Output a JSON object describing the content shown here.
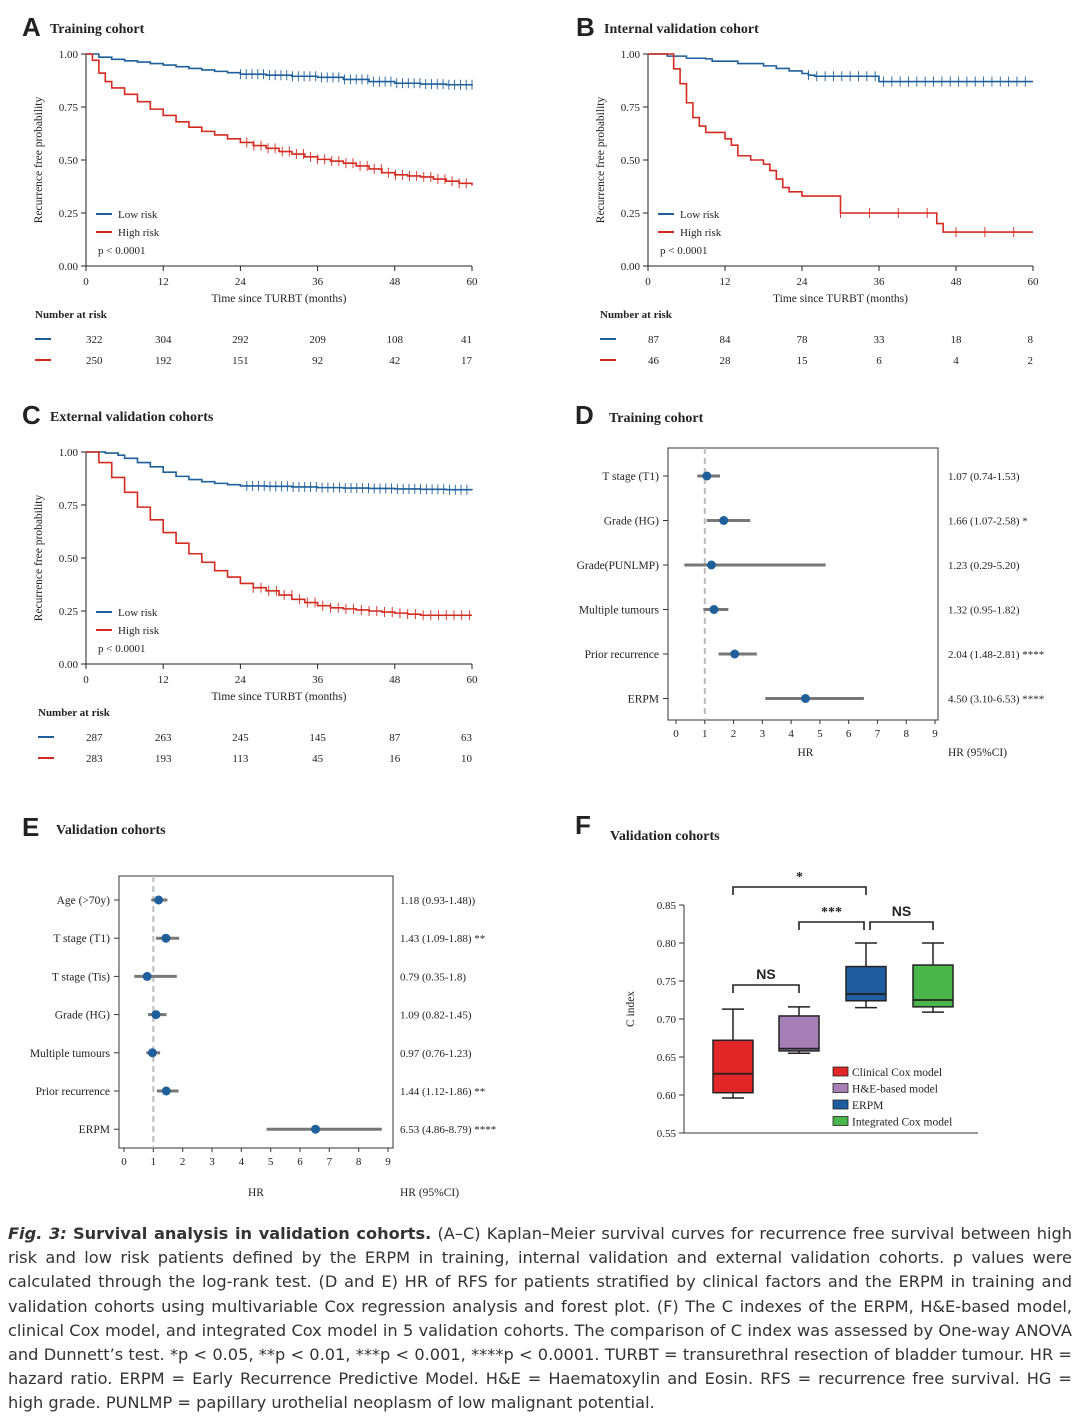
{
  "colors": {
    "low": "#1f5f9a",
    "high": "#d42a20",
    "forest_line": "#777777",
    "forest_dot": "#1f5f9a",
    "box": [
      "#e02626",
      "#a57fb5",
      "#1f5da0",
      "#4ab54a"
    ]
  },
  "panels": {
    "A": {
      "letter": "A",
      "title": "Training cohort",
      "ylabel": "Recurrence free probability",
      "xlabel": "Time since TURBT (months)",
      "legend": [
        "Low risk",
        "High risk"
      ],
      "pval": "p < 0.0001"
    },
    "B": {
      "letter": "B",
      "title": "Internal validation cohort",
      "ylabel": "Recurrence free probability",
      "xlabel": "Time since TURBT (months)",
      "legend": [
        "Low risk",
        "High risk"
      ],
      "pval": "p < 0.0001"
    },
    "C": {
      "letter": "C",
      "title": "External validation cohorts",
      "ylabel": "Recurrence free probability",
      "xlabel": "Time since TURBT (months)",
      "legend": [
        "Low risk",
        "High risk"
      ],
      "pval": "p < 0.0001"
    },
    "D": {
      "letter": "D",
      "title": "Training cohort",
      "xlabel": "HR",
      "hrlabel": "HR (95%CI)"
    },
    "E": {
      "letter": "E",
      "title": "Validation cohorts",
      "xlabel": "HR",
      "hrlabel": "HR (95%CI)"
    },
    "F": {
      "letter": "F",
      "title": "Validation cohorts",
      "ylabel": "C index"
    }
  },
  "risk_table_label": "Number at risk",
  "chart_data": [
    {
      "panel": "A",
      "type": "line",
      "title": "Training cohort",
      "xlabel": "Time since TURBT (months)",
      "ylabel": "Recurrence free probability",
      "xlim": [
        0,
        60
      ],
      "ylim": [
        0,
        1
      ],
      "xticks": [
        "0",
        "12",
        "24",
        "36",
        "48",
        "60"
      ],
      "yticks": [
        "0.00",
        "0.25",
        "0.50",
        "0.75",
        "1.00"
      ],
      "legend_position": "bottom-left",
      "series": [
        {
          "name": "Low risk",
          "x": [
            0,
            2,
            4,
            6,
            8,
            10,
            12,
            14,
            16,
            18,
            20,
            22,
            24,
            28,
            32,
            36,
            40,
            44,
            48,
            52,
            56,
            60
          ],
          "y": [
            1,
            0.985,
            0.975,
            0.968,
            0.962,
            0.955,
            0.948,
            0.94,
            0.932,
            0.925,
            0.918,
            0.912,
            0.905,
            0.9,
            0.895,
            0.89,
            0.88,
            0.87,
            0.862,
            0.858,
            0.855,
            0.85
          ]
        },
        {
          "name": "High risk",
          "x": [
            0,
            1,
            2,
            3,
            4,
            6,
            8,
            10,
            12,
            14,
            16,
            18,
            20,
            22,
            24,
            26,
            28,
            30,
            32,
            34,
            36,
            38,
            40,
            42,
            44,
            46,
            48,
            50,
            52,
            54,
            56,
            58,
            60
          ],
          "y": [
            1,
            0.97,
            0.91,
            0.87,
            0.84,
            0.81,
            0.775,
            0.74,
            0.71,
            0.68,
            0.655,
            0.635,
            0.618,
            0.6,
            0.583,
            0.568,
            0.555,
            0.54,
            0.528,
            0.515,
            0.503,
            0.495,
            0.485,
            0.472,
            0.458,
            0.44,
            0.43,
            0.425,
            0.42,
            0.41,
            0.4,
            0.39,
            0.38
          ]
        }
      ],
      "number_at_risk": {
        "times": [
          0,
          12,
          24,
          36,
          48,
          60
        ],
        "Low risk": [
          322,
          304,
          292,
          209,
          108,
          41
        ],
        "High risk": [
          250,
          192,
          151,
          92,
          42,
          17
        ]
      }
    },
    {
      "panel": "B",
      "type": "line",
      "title": "Internal validation cohort",
      "xlabel": "Time since TURBT (months)",
      "ylabel": "Recurrence free probability",
      "xlim": [
        0,
        60
      ],
      "ylim": [
        0,
        1
      ],
      "xticks": [
        "0",
        "12",
        "24",
        "36",
        "48",
        "60"
      ],
      "yticks": [
        "0.00",
        "0.25",
        "0.50",
        "0.75",
        "1.00"
      ],
      "legend_position": "bottom-left",
      "series": [
        {
          "name": "Low risk",
          "x": [
            0,
            3,
            6,
            9,
            10,
            14,
            18,
            20,
            22,
            24,
            25,
            26,
            28,
            30,
            34,
            36,
            40,
            44,
            48,
            52,
            56,
            60
          ],
          "y": [
            1,
            0.99,
            0.98,
            0.977,
            0.966,
            0.955,
            0.944,
            0.932,
            0.92,
            0.908,
            0.9,
            0.895,
            0.895,
            0.895,
            0.895,
            0.87,
            0.87,
            0.87,
            0.87,
            0.87,
            0.87,
            0.87
          ]
        },
        {
          "name": "High risk",
          "x": [
            0,
            4,
            5,
            6,
            7,
            8,
            9,
            12,
            13,
            14,
            16,
            18,
            19,
            20,
            21,
            22,
            24,
            26,
            30,
            36,
            40,
            44,
            45,
            46,
            48,
            52,
            56,
            60
          ],
          "y": [
            1,
            0.93,
            0.86,
            0.77,
            0.7,
            0.66,
            0.63,
            0.6,
            0.57,
            0.52,
            0.5,
            0.48,
            0.45,
            0.41,
            0.37,
            0.35,
            0.33,
            0.33,
            0.25,
            0.25,
            0.25,
            0.25,
            0.2,
            0.16,
            0.16,
            0.16,
            0.16,
            0.16
          ]
        }
      ],
      "number_at_risk": {
        "times": [
          0,
          12,
          24,
          36,
          48,
          60
        ],
        "Low risk": [
          87,
          84,
          78,
          33,
          18,
          8
        ],
        "High risk": [
          46,
          28,
          15,
          6,
          4,
          2
        ]
      }
    },
    {
      "panel": "C",
      "type": "line",
      "title": "External validation cohorts",
      "xlabel": "Time since TURBT (months)",
      "ylabel": "Recurrence free probability",
      "xlim": [
        0,
        60
      ],
      "ylim": [
        0,
        1
      ],
      "xticks": [
        "0",
        "12",
        "24",
        "36",
        "48",
        "60"
      ],
      "yticks": [
        "0.00",
        "0.25",
        "0.50",
        "0.75",
        "1.00"
      ],
      "legend_position": "bottom-left",
      "series": [
        {
          "name": "Low risk",
          "x": [
            0,
            3,
            5,
            6,
            8,
            10,
            12,
            14,
            16,
            18,
            20,
            22,
            24,
            28,
            32,
            36,
            40,
            44,
            48,
            52,
            56,
            60
          ],
          "y": [
            1,
            0.995,
            0.985,
            0.97,
            0.95,
            0.93,
            0.905,
            0.885,
            0.87,
            0.86,
            0.852,
            0.846,
            0.84,
            0.838,
            0.835,
            0.832,
            0.83,
            0.828,
            0.826,
            0.824,
            0.822,
            0.82
          ]
        },
        {
          "name": "High risk",
          "x": [
            0,
            2,
            4,
            6,
            8,
            10,
            12,
            14,
            16,
            18,
            20,
            22,
            24,
            26,
            28,
            30,
            32,
            34,
            36,
            38,
            40,
            42,
            44,
            46,
            48,
            50,
            52,
            56,
            60
          ],
          "y": [
            1,
            0.95,
            0.88,
            0.81,
            0.74,
            0.68,
            0.62,
            0.57,
            0.52,
            0.48,
            0.44,
            0.41,
            0.38,
            0.36,
            0.345,
            0.325,
            0.305,
            0.29,
            0.275,
            0.265,
            0.26,
            0.255,
            0.25,
            0.245,
            0.24,
            0.235,
            0.23,
            0.23,
            0.23
          ]
        }
      ],
      "number_at_risk": {
        "times": [
          0,
          12,
          24,
          36,
          48,
          60
        ],
        "Low risk": [
          287,
          263,
          245,
          145,
          87,
          63
        ],
        "High risk": [
          283,
          193,
          113,
          45,
          16,
          10
        ]
      }
    },
    {
      "panel": "D",
      "type": "scatter",
      "title": "Training cohort",
      "xlabel": "HR",
      "xlim": [
        0,
        9
      ],
      "xticks": [
        "0",
        "1",
        "2",
        "3",
        "4",
        "5",
        "6",
        "7",
        "8",
        "9"
      ],
      "reference_line": 1,
      "rows": [
        {
          "label": "T stage (T1)",
          "hr": 1.07,
          "lo": 0.74,
          "hi": 1.53,
          "text": "1.07 (0.74-1.53)"
        },
        {
          "label": "Grade (HG)",
          "hr": 1.66,
          "lo": 1.07,
          "hi": 2.58,
          "text": "1.66 (1.07-2.58) *"
        },
        {
          "label": "Grade(PUNLMP)",
          "hr": 1.23,
          "lo": 0.29,
          "hi": 5.2,
          "text": "1.23 (0.29-5.20)"
        },
        {
          "label": "Multiple tumours",
          "hr": 1.32,
          "lo": 0.95,
          "hi": 1.82,
          "text": "1.32 (0.95-1.82)"
        },
        {
          "label": "Prior recurrence",
          "hr": 2.04,
          "lo": 1.48,
          "hi": 2.81,
          "text": "2.04 (1.48-2.81) ****"
        },
        {
          "label": "ERPM",
          "hr": 4.5,
          "lo": 3.1,
          "hi": 6.53,
          "text": "4.50 (3.10-6.53) ****"
        }
      ]
    },
    {
      "panel": "E",
      "type": "scatter",
      "title": "Validation cohorts",
      "xlabel": "HR",
      "xlim": [
        0,
        9
      ],
      "xticks": [
        "0",
        "1",
        "2",
        "3",
        "4",
        "5",
        "6",
        "7",
        "8",
        "9"
      ],
      "reference_line": 1,
      "rows": [
        {
          "label": "Age (>70y)",
          "hr": 1.18,
          "lo": 0.93,
          "hi": 1.48,
          "text": "1.18 (0.93-1.48))"
        },
        {
          "label": "T stage (T1)",
          "hr": 1.43,
          "lo": 1.09,
          "hi": 1.88,
          "text": "1.43 (1.09-1.88) **"
        },
        {
          "label": "T stage (Tis)",
          "hr": 0.79,
          "lo": 0.35,
          "hi": 1.8,
          "text": "0.79 (0.35-1.8)"
        },
        {
          "label": "Grade (HG)",
          "hr": 1.09,
          "lo": 0.82,
          "hi": 1.45,
          "text": "1.09 (0.82-1.45)"
        },
        {
          "label": "Multiple tumours",
          "hr": 0.97,
          "lo": 0.76,
          "hi": 1.23,
          "text": "0.97 (0.76-1.23)"
        },
        {
          "label": "Prior recurrence",
          "hr": 1.44,
          "lo": 1.12,
          "hi": 1.86,
          "text": "1.44 (1.12-1.86) **"
        },
        {
          "label": "ERPM",
          "hr": 6.53,
          "lo": 4.86,
          "hi": 8.79,
          "text": "6.53 (4.86-8.79) ****"
        }
      ]
    },
    {
      "panel": "F",
      "type": "bar",
      "subtype": "boxplot",
      "title": "Validation cohorts",
      "ylabel": "C index",
      "ylim": [
        0.55,
        0.85
      ],
      "yticks": [
        "0.55",
        "0.60",
        "0.65",
        "0.70",
        "0.75",
        "0.80",
        "0.85"
      ],
      "legend_position": "bottom-right",
      "boxes": [
        {
          "name": "Clinical Cox model",
          "min": 0.596,
          "q1": 0.603,
          "median": 0.628,
          "q3": 0.672,
          "max": 0.713
        },
        {
          "name": "H&E-based model",
          "min": 0.655,
          "q1": 0.658,
          "median": 0.661,
          "q3": 0.704,
          "max": 0.716
        },
        {
          "name": "ERPM",
          "min": 0.715,
          "q1": 0.724,
          "median": 0.733,
          "q3": 0.769,
          "max": 0.8
        },
        {
          "name": "Integrated Cox model",
          "min": 0.709,
          "q1": 0.716,
          "median": 0.725,
          "q3": 0.771,
          "max": 0.8
        }
      ],
      "comparisons": [
        {
          "from": 0,
          "to": 2,
          "label": "*"
        },
        {
          "from": 1,
          "to": 2,
          "label": "***"
        },
        {
          "from": 2,
          "to": 3,
          "label": "NS"
        },
        {
          "from": 0,
          "to": 1,
          "label": "NS"
        }
      ]
    }
  ],
  "caption": {
    "lead_italic": "Fig. 3:",
    "lead_bold": "Survival analysis in validation cohorts.",
    "text": "(A–C) Kaplan–Meier survival curves for recurrence free survival between high risk and low risk patients defined by the ERPM in training, internal validation and external validation cohorts. p values were calculated through the log-rank test. (D and E) HR of RFS for patients stratified by clinical factors and the ERPM in training and validation cohorts using multivariable Cox regression analysis and forest plot. (F) The C indexes of the ERPM, H&E-based model, clinical Cox model, and integrated Cox model in 5 validation cohorts. The comparison of C index was assessed by One-way ANOVA and Dunnett’s test. *p < 0.05, **p < 0.01, ***p < 0.001, ****p < 0.0001. TURBT = transurethral resection of bladder tumour. HR = hazard ratio. ERPM = Early Recurrence Predictive Model. H&E = Haematoxylin and Eosin. RFS = recurrence free survival. HG = high grade. PUNLMP = papillary urothelial neoplasm of low malignant potential."
  }
}
